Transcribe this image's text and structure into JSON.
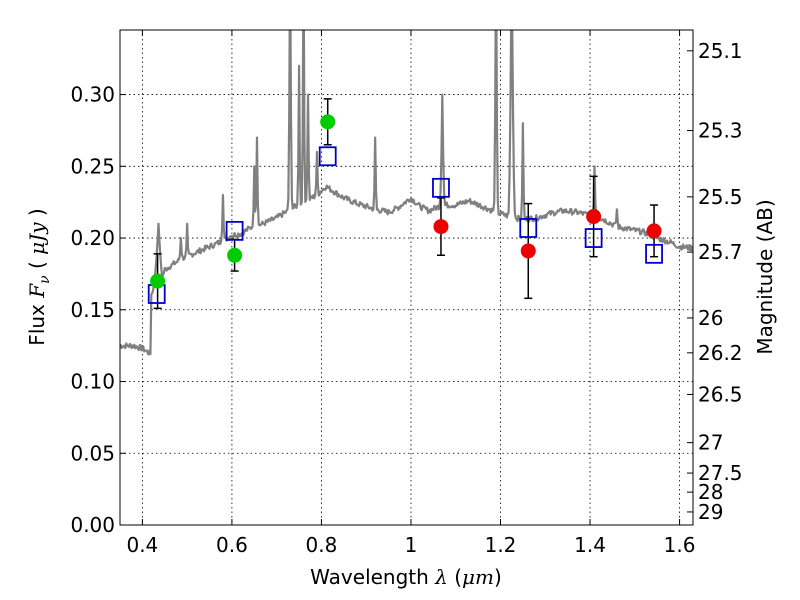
{
  "chart_data": {
    "type": "scatter",
    "xlabel": "Wavelength  λ (μm)",
    "ylabel": "Flux  F_ν  ( μJy )",
    "ylabel_parts": {
      "prefix": "Flux ",
      "symbol": "F",
      "subscript": "ν",
      "open": " ( ",
      "unit": "μJy",
      "close": " )"
    },
    "xlabel_parts": {
      "prefix": "Wavelength ",
      "symbol": "λ",
      "open": " (",
      "unit": "μm",
      "close": ")"
    },
    "y2label": "Magnitude (AB)",
    "xlim": [
      0.35,
      1.63
    ],
    "ylim": [
      0.0,
      0.345
    ],
    "grid": true,
    "xticks": [
      0.4,
      0.6,
      0.8,
      1.0,
      1.2,
      1.4,
      1.6
    ],
    "xtick_labels": [
      "0.4",
      "0.6",
      "0.8",
      "1",
      "1.2",
      "1.4",
      "1.6"
    ],
    "yticks": [
      0.0,
      0.05,
      0.1,
      0.15,
      0.2,
      0.25,
      0.3
    ],
    "ytick_labels": [
      "0.00",
      "0.05",
      "0.10",
      "0.15",
      "0.20",
      "0.25",
      "0.30"
    ],
    "y2ticks": [
      {
        "label": "25.1",
        "flux": 0.3305
      },
      {
        "label": "25.3",
        "flux": 0.2749
      },
      {
        "label": "25.5",
        "flux": 0.2287
      },
      {
        "label": "25.7",
        "flux": 0.1902
      },
      {
        "label": "26",
        "flux": 0.1443
      },
      {
        "label": "26.2",
        "flux": 0.12
      },
      {
        "label": "26.5",
        "flux": 0.091
      },
      {
        "label": "27",
        "flux": 0.0574
      },
      {
        "label": "27.5",
        "flux": 0.0362
      },
      {
        "label": "28",
        "flux": 0.0229
      },
      {
        "label": "29",
        "flux": 0.0091
      }
    ],
    "series": [
      {
        "name": "model spectrum",
        "kind": "line",
        "color": "#808080",
        "continuum": [
          [
            0.35,
            0.125
          ],
          [
            0.38,
            0.125
          ],
          [
            0.4,
            0.123
          ],
          [
            0.41,
            0.121
          ],
          [
            0.425,
            0.118
          ],
          [
            0.43,
            0.15
          ],
          [
            0.44,
            0.168
          ],
          [
            0.45,
            0.178
          ],
          [
            0.47,
            0.182
          ],
          [
            0.49,
            0.186
          ],
          [
            0.52,
            0.19
          ],
          [
            0.55,
            0.194
          ],
          [
            0.58,
            0.198
          ],
          [
            0.6,
            0.202
          ],
          [
            0.62,
            0.203
          ],
          [
            0.64,
            0.207
          ],
          [
            0.67,
            0.21
          ],
          [
            0.7,
            0.214
          ],
          [
            0.73,
            0.22
          ],
          [
            0.76,
            0.225
          ],
          [
            0.79,
            0.23
          ],
          [
            0.81,
            0.236
          ],
          [
            0.83,
            0.232
          ],
          [
            0.85,
            0.228
          ],
          [
            0.88,
            0.224
          ],
          [
            0.9,
            0.222
          ],
          [
            0.92,
            0.22
          ],
          [
            0.95,
            0.218
          ],
          [
            0.97,
            0.221
          ],
          [
            1.0,
            0.228
          ],
          [
            1.02,
            0.222
          ],
          [
            1.04,
            0.219
          ],
          [
            1.07,
            0.223
          ],
          [
            1.1,
            0.223
          ],
          [
            1.13,
            0.226
          ],
          [
            1.16,
            0.222
          ],
          [
            1.19,
            0.218
          ],
          [
            1.22,
            0.215
          ],
          [
            1.25,
            0.213
          ],
          [
            1.28,
            0.214
          ],
          [
            1.31,
            0.217
          ],
          [
            1.34,
            0.219
          ],
          [
            1.37,
            0.218
          ],
          [
            1.4,
            0.216
          ],
          [
            1.43,
            0.213
          ],
          [
            1.46,
            0.208
          ],
          [
            1.49,
            0.206
          ],
          [
            1.52,
            0.204
          ],
          [
            1.55,
            0.2
          ],
          [
            1.58,
            0.197
          ],
          [
            1.6,
            0.194
          ],
          [
            1.63,
            0.193
          ]
        ],
        "lines": [
          [
            0.436,
            0.016,
            0.21
          ],
          [
            0.486,
            0.004,
            0.2
          ],
          [
            0.5,
            0.004,
            0.21
          ],
          [
            0.58,
            0.004,
            0.23
          ],
          [
            0.65,
            0.004,
            0.25
          ],
          [
            0.656,
            0.004,
            0.27
          ],
          [
            0.73,
            0.005,
            0.4
          ],
          [
            0.75,
            0.004,
            0.32
          ],
          [
            0.76,
            0.004,
            0.4
          ],
          [
            0.77,
            0.004,
            0.3
          ],
          [
            0.79,
            0.004,
            0.26
          ],
          [
            0.92,
            0.004,
            0.27
          ],
          [
            1.07,
            0.006,
            0.3
          ],
          [
            1.19,
            0.005,
            0.4
          ],
          [
            1.225,
            0.008,
            0.4
          ],
          [
            1.25,
            0.004,
            0.28
          ],
          [
            1.41,
            0.004,
            0.25
          ],
          [
            1.46,
            0.004,
            0.22
          ]
        ]
      },
      {
        "name": "model photometry",
        "kind": "square",
        "color": "#0000cc",
        "points": [
          [
            0.432,
            0.161
          ],
          [
            0.606,
            0.205
          ],
          [
            0.814,
            0.257
          ],
          [
            1.067,
            0.235
          ],
          [
            1.262,
            0.207
          ],
          [
            1.408,
            0.2
          ],
          [
            1.543,
            0.189
          ]
        ]
      },
      {
        "name": "observed (green)",
        "kind": "circle",
        "color": "#00cc00",
        "points": [
          [
            0.434,
            0.17,
            0.019
          ],
          [
            0.606,
            0.188,
            0.011
          ],
          [
            0.814,
            0.281,
            0.016
          ]
        ]
      },
      {
        "name": "observed (red)",
        "kind": "circle",
        "color": "#ee0000",
        "points": [
          [
            1.067,
            0.208,
            0.02
          ],
          [
            1.262,
            0.191,
            0.033
          ],
          [
            1.408,
            0.215,
            0.028
          ],
          [
            1.543,
            0.205,
            0.018
          ]
        ]
      }
    ]
  }
}
